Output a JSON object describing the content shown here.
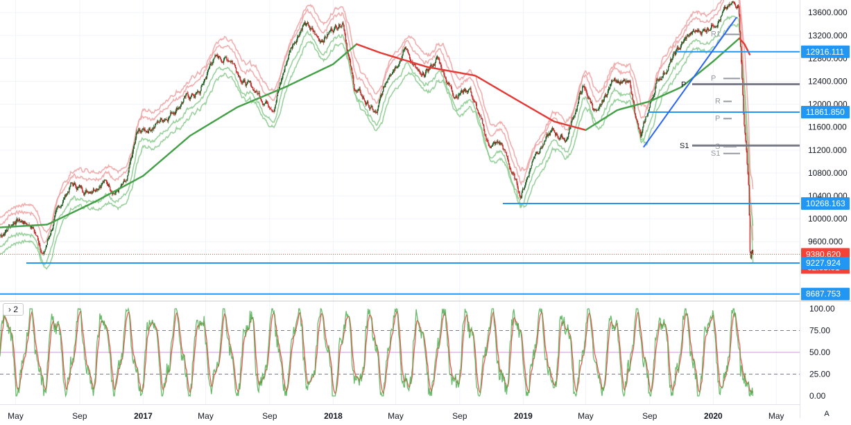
{
  "chart_data": [
    {
      "type": "candlestick",
      "panel": "main",
      "price_axis_ticks": [
        13600,
        13200,
        12800,
        12400,
        12000,
        11600,
        11200,
        10800,
        10400,
        10000,
        9600
      ],
      "price_axis_labels": [
        "13600.000",
        "13200.000",
        "12800.000",
        "12400.000",
        "12000.000",
        "11600.000",
        "11200.000",
        "10800.000",
        "10400.000",
        "10000.000",
        "9600.000"
      ],
      "ylim": [
        8600,
        13820
      ],
      "time_axis_labels": [
        "May",
        "Sep",
        "2017",
        "May",
        "Sep",
        "2018",
        "May",
        "Sep",
        "2019",
        "May",
        "Sep",
        "2020",
        "May"
      ],
      "price_path": [
        [
          "2016-04-01",
          9700
        ],
        [
          "2016-05-01",
          10000
        ],
        [
          "2016-06-01",
          9900
        ],
        [
          "2016-06-24",
          9400
        ],
        [
          "2016-07-15",
          10000
        ],
        [
          "2016-08-15",
          10600
        ],
        [
          "2016-09-15",
          10500
        ],
        [
          "2016-10-15",
          10700
        ],
        [
          "2016-11-10",
          10500
        ],
        [
          "2016-12-01",
          10600
        ],
        [
          "2016-12-20",
          11450
        ],
        [
          "2017-01-15",
          11600
        ],
        [
          "2017-02-15",
          11800
        ],
        [
          "2017-03-20",
          12100
        ],
        [
          "2017-04-20",
          12200
        ],
        [
          "2017-05-15",
          12800
        ],
        [
          "2017-06-20",
          12800
        ],
        [
          "2017-07-15",
          12400
        ],
        [
          "2017-08-20",
          12100
        ],
        [
          "2017-09-10",
          12000
        ],
        [
          "2017-10-10",
          12950
        ],
        [
          "2017-11-05",
          13450
        ],
        [
          "2017-12-05",
          13100
        ],
        [
          "2018-01-20",
          13500
        ],
        [
          "2018-02-10",
          12300
        ],
        [
          "2018-03-25",
          11800
        ],
        [
          "2018-04-20",
          12600
        ],
        [
          "2018-05-20",
          13000
        ],
        [
          "2018-06-20",
          12400
        ],
        [
          "2018-07-20",
          12800
        ],
        [
          "2018-08-20",
          12200
        ],
        [
          "2018-09-20",
          12300
        ],
        [
          "2018-10-25",
          11300
        ],
        [
          "2018-11-20",
          11300
        ],
        [
          "2018-12-27",
          10400
        ],
        [
          "2019-01-25",
          11200
        ],
        [
          "2019-02-25",
          11500
        ],
        [
          "2019-03-25",
          11400
        ],
        [
          "2019-04-25",
          12300
        ],
        [
          "2019-05-25",
          11800
        ],
        [
          "2019-06-25",
          12500
        ],
        [
          "2019-07-25",
          12300
        ],
        [
          "2019-08-15",
          11400
        ],
        [
          "2019-09-15",
          12400
        ],
        [
          "2019-10-15",
          12800
        ],
        [
          "2019-11-15",
          13200
        ],
        [
          "2019-12-15",
          13300
        ],
        [
          "2020-01-20",
          13600
        ],
        [
          "2020-02-19",
          13780
        ],
        [
          "2020-02-28",
          11900
        ],
        [
          "2020-03-09",
          10600
        ],
        [
          "2020-03-12",
          9300
        ],
        [
          "2020-03-16",
          9450
        ],
        [
          "2020-03-18",
          9380
        ]
      ],
      "moving_average": {
        "color": "#43a047",
        "color_down": "#e53935",
        "values": [
          [
            "2016-04-01",
            9850
          ],
          [
            "2016-07-01",
            9900
          ],
          [
            "2016-10-01",
            10300
          ],
          [
            "2017-01-01",
            10750
          ],
          [
            "2017-04-01",
            11450
          ],
          [
            "2017-07-01",
            11950
          ],
          [
            "2017-10-01",
            12300
          ],
          [
            "2018-01-01",
            12700
          ],
          [
            "2018-02-15",
            13050
          ],
          [
            "2018-04-01",
            12900
          ],
          [
            "2018-07-01",
            12650
          ],
          [
            "2018-10-01",
            12500
          ],
          [
            "2018-12-15",
            12100
          ],
          [
            "2019-03-01",
            11700
          ],
          [
            "2019-05-01",
            11550
          ],
          [
            "2019-07-01",
            11900
          ],
          [
            "2019-09-01",
            12050
          ],
          [
            "2019-11-01",
            12300
          ],
          [
            "2020-01-01",
            12750
          ],
          [
            "2020-02-20",
            13150
          ],
          [
            "2020-03-01",
            13050
          ],
          [
            "2020-03-12",
            12850
          ]
        ]
      },
      "channel_half_width": 320,
      "horizontal_levels": [
        {
          "value": 12916.111,
          "label": "12916.111",
          "color": "#2196f3"
        },
        {
          "value": 11861.85,
          "label": "11861.850",
          "color": "#2196f3"
        },
        {
          "value": 10268.163,
          "label": "10268.163",
          "color": "#2196f3"
        },
        {
          "value": 9227.924,
          "label": "9227.924",
          "color": "#2196f3"
        },
        {
          "value": 8687.753,
          "label": "8687.753",
          "color": "#2196f3"
        }
      ],
      "pivot_levels": [
        {
          "value": 12350,
          "label": "P",
          "color": "#787b86"
        },
        {
          "value": 11280,
          "label": "S1",
          "color": "#787b86"
        },
        {
          "value": 13220,
          "label": "R1",
          "color": "#9598a1"
        },
        {
          "value": 12450,
          "label": "P",
          "color": "#9598a1"
        },
        {
          "value": 12050,
          "label": "R",
          "color": "#9598a1"
        },
        {
          "value": 11750,
          "label": "P",
          "color": "#9598a1"
        },
        {
          "value": 11260,
          "label": "S",
          "color": "#9598a1"
        },
        {
          "value": 11140,
          "label": "S1",
          "color": "#9598a1"
        }
      ],
      "trendline": {
        "color": "#2962ff"
      },
      "last_price": {
        "value": 9380.62,
        "label": "9380.620",
        "countdown": "02:05:01",
        "color": "#f44336"
      },
      "colors": {
        "up": "#26a69a",
        "down": "#ef5350",
        "candle_body_up": "#1b5e20",
        "candle_body_down": "#c62828",
        "upper_band": "#ef9a9a",
        "lower_band": "#81c784"
      }
    },
    {
      "type": "line",
      "panel": "oscillator",
      "indicator_toggle": "2",
      "ylim": [
        0,
        100
      ],
      "axis_labels": [
        "100.00",
        "75.00",
        "50.00",
        "25.00",
        "0.00"
      ],
      "axis_ticks": [
        100,
        75,
        50,
        25,
        0
      ],
      "reference_lines": [
        75,
        50,
        25
      ],
      "series": [
        {
          "color": "#4caf50"
        },
        {
          "color": "#ef5350"
        }
      ]
    }
  ],
  "ui": {
    "auto_scale_label": "A",
    "colors": {
      "axis_border": "#e0e3eb",
      "grid": "#f0f3fa"
    }
  }
}
